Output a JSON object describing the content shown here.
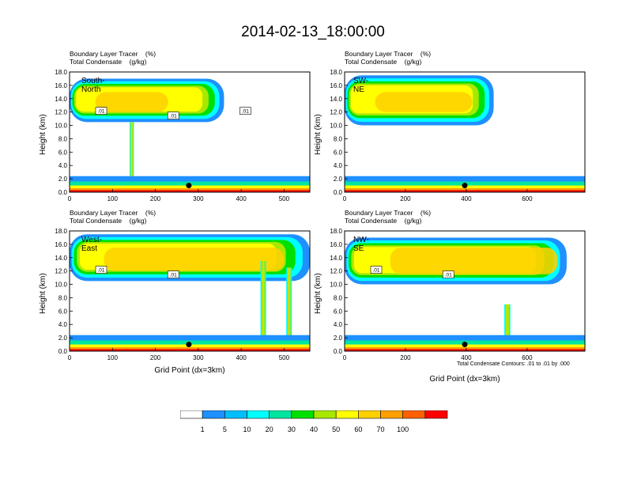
{
  "title": "2014-02-13_18:00:00",
  "subtitle_lines": [
    "Boundary Layer Tracer    (%)",
    "Total Condensate    (g/kg)"
  ],
  "y_axis_label": "Height (km)",
  "x_axis_label": "Grid Point (dx=3km)",
  "contour_note": "Total Condensate Contours: .01 to .01 by .000",
  "colorbar": {
    "colors": [
      "#ffffff",
      "#1e90ff",
      "#00bfff",
      "#00ffff",
      "#00e5a0",
      "#00e000",
      "#a8e800",
      "#ffff00",
      "#ffd000",
      "#ffa000",
      "#ff6000",
      "#ff0000"
    ],
    "labels": [
      "1",
      "5",
      "10",
      "20",
      "30",
      "40",
      "50",
      "60",
      "70",
      "100"
    ]
  },
  "chart_data": [
    {
      "type": "heatmap",
      "panel_label": "South-North",
      "xlim": [
        0,
        560
      ],
      "ylim": [
        0,
        18
      ],
      "xticks": [
        "0",
        "100",
        "200",
        "300",
        "400",
        "500"
      ],
      "yticks": [
        "0.0",
        "2.0",
        "4.0",
        "6.0",
        "8.0",
        "10.0",
        "12.0",
        "14.0",
        "16.0",
        "18.0"
      ],
      "contour_labels": [
        ".01",
        ".01",
        ".01"
      ],
      "marker": {
        "x": 278,
        "y": 1.0
      },
      "upper_layer": {
        "x_start": 0,
        "x_end": 360,
        "bottom_km": 10.5,
        "top_km": 17.0,
        "core_x": [
          60,
          230
        ],
        "core_km": [
          12.0,
          15.0
        ]
      },
      "columns": [
        {
          "x_start": 140,
          "x_end": 150,
          "bottom_km": 0.5,
          "top_km": 10.5
        }
      ]
    },
    {
      "type": "heatmap",
      "panel_label": "SW-NE",
      "xlim": [
        0,
        790
      ],
      "ylim": [
        0,
        18
      ],
      "xticks": [
        "0",
        "200",
        "400",
        "600"
      ],
      "yticks": [
        "0.0",
        "2.0",
        "4.0",
        "6.0",
        "8.0",
        "10.0",
        "12.0",
        "14.0",
        "16.0",
        "18.0"
      ],
      "contour_labels": [],
      "marker": {
        "x": 395,
        "y": 1.0
      },
      "upper_layer": {
        "x_start": 0,
        "x_end": 490,
        "bottom_km": 10.0,
        "top_km": 17.5,
        "core_x": [
          100,
          420
        ],
        "core_km": [
          12.0,
          15.0
        ]
      },
      "columns": []
    },
    {
      "type": "heatmap",
      "panel_label": "West-East",
      "xlim": [
        0,
        560
      ],
      "ylim": [
        0,
        18
      ],
      "xticks": [
        "0",
        "100",
        "200",
        "300",
        "400",
        "500"
      ],
      "yticks": [
        "0.0",
        "2.0",
        "4.0",
        "6.0",
        "8.0",
        "10.0",
        "12.0",
        "14.0",
        "16.0",
        "18.0"
      ],
      "contour_labels": [
        ".01",
        ".01"
      ],
      "marker": {
        "x": 278,
        "y": 1.0
      },
      "upper_layer": {
        "x_start": 0,
        "x_end": 560,
        "bottom_km": 10.5,
        "top_km": 17.5,
        "core_x": [
          80,
          500
        ],
        "core_km": [
          12.0,
          15.5
        ]
      },
      "columns": [
        {
          "x_start": 445,
          "x_end": 458,
          "bottom_km": 0.5,
          "top_km": 13.5
        },
        {
          "x_start": 505,
          "x_end": 518,
          "bottom_km": 0.5,
          "top_km": 12.5
        }
      ]
    },
    {
      "type": "heatmap",
      "panel_label": "NW-SE",
      "xlim": [
        0,
        790
      ],
      "ylim": [
        0,
        18
      ],
      "xticks": [
        "0",
        "200",
        "400",
        "600"
      ],
      "yticks": [
        "0.0",
        "2.0",
        "4.0",
        "6.0",
        "8.0",
        "10.0",
        "12.0",
        "14.0",
        "16.0",
        "18.0"
      ],
      "contour_labels": [
        ".01",
        ".01"
      ],
      "marker": {
        "x": 395,
        "y": 1.0
      },
      "upper_layer": {
        "x_start": 0,
        "x_end": 730,
        "bottom_km": 10.0,
        "top_km": 17.0,
        "core_x": [
          150,
          700
        ],
        "core_km": [
          11.5,
          15.5
        ]
      },
      "columns": [
        {
          "x_start": 525,
          "x_end": 545,
          "bottom_km": 0.5,
          "top_km": 7.0
        }
      ]
    }
  ]
}
